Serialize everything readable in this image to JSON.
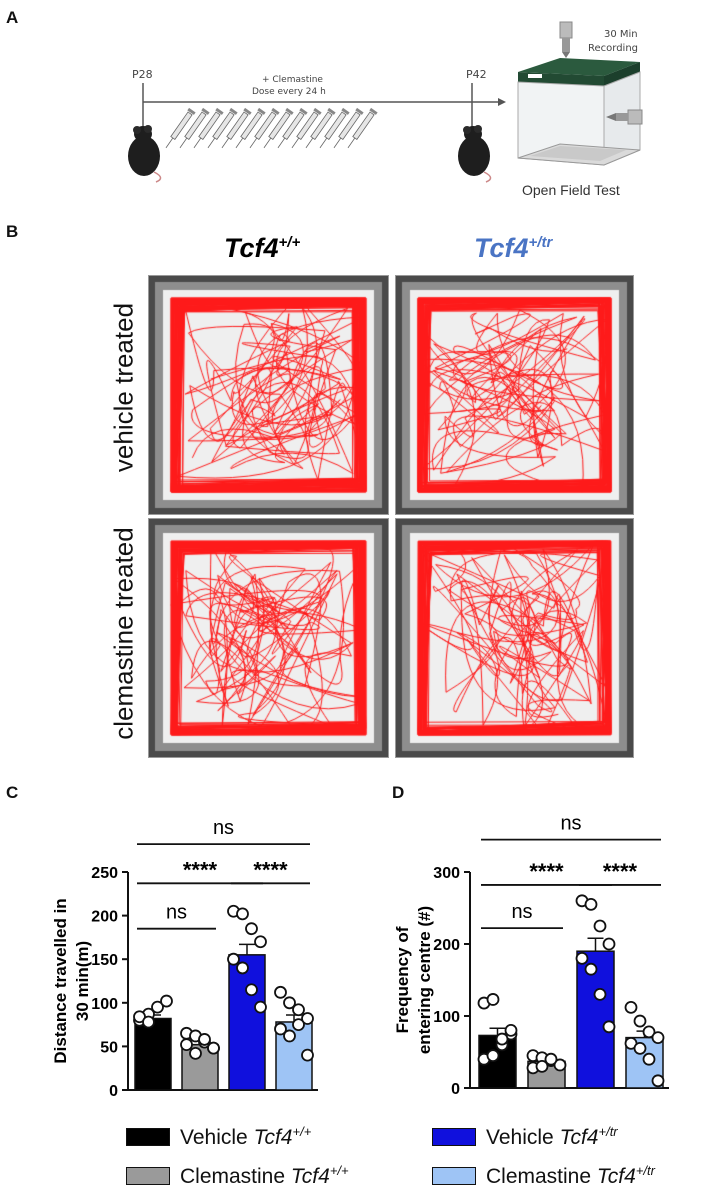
{
  "panels": {
    "a": "A",
    "b": "B",
    "c": "C",
    "d": "D"
  },
  "timeline": {
    "start_label": "P28",
    "end_label": "P42",
    "treatment_line1": "+ Clemastine",
    "treatment_line2": "Dose every 24 h",
    "syringe_count": 14,
    "recording_line1": "30 Min",
    "recording_line2": "Recording",
    "test_label": "Open Field Test"
  },
  "tracking": {
    "columns": [
      {
        "gene": "Tcf4",
        "sup": "+/+",
        "color": "#000000"
      },
      {
        "gene": "Tcf4",
        "sup": "+/tr",
        "color": "#4a74c4"
      }
    ],
    "rows": [
      "vehicle treated",
      "clemastine treated"
    ]
  },
  "legend": [
    {
      "label": "Vehicle",
      "gene": "Tcf4",
      "sup": "+/+",
      "color": "#000000"
    },
    {
      "label": "Vehicle",
      "gene": "Tcf4",
      "sup": "+/tr",
      "color": "#1010dd"
    },
    {
      "label": "Clemastine",
      "gene": "Tcf4",
      "sup": "+/+",
      "color": "#9a9a9a"
    },
    {
      "label": "Clemastine",
      "gene": "Tcf4",
      "sup": "+/tr",
      "color": "#9ec4f5"
    }
  ],
  "chart_data": [
    {
      "type": "bar",
      "panel": "C",
      "ylabel_line1": "Distance travelled in",
      "ylabel_line2": "30 min(m)",
      "ylim": [
        0,
        250
      ],
      "yticks": [
        0,
        50,
        100,
        150,
        200,
        250
      ],
      "categories": [
        "Vehicle Tcf4+/+",
        "Clemastine Tcf4+/+",
        "Vehicle Tcf4+/tr",
        "Clemastine Tcf4+/tr"
      ],
      "colors": [
        "#000000",
        "#9a9a9a",
        "#1010dd",
        "#9ec4f5"
      ],
      "values": [
        82,
        52,
        155,
        78
      ],
      "errors": [
        4,
        5,
        12,
        8
      ],
      "points": [
        [
          80,
          87,
          95,
          102,
          84,
          78
        ],
        [
          65,
          62,
          55,
          48,
          52,
          42,
          58,
          48
        ],
        [
          205,
          202,
          185,
          170,
          150,
          140,
          115,
          95
        ],
        [
          112,
          100,
          92,
          82,
          70,
          62,
          75,
          40
        ]
      ],
      "comparisons": [
        {
          "from": 0,
          "to": 3,
          "label": "ns",
          "y": 282
        },
        {
          "from": 0,
          "to": 2,
          "label": "****",
          "y": 237
        },
        {
          "from": 2,
          "to": 3,
          "label": "****",
          "y": 237
        },
        {
          "from": 0,
          "to": 1,
          "label": "ns",
          "y": 185
        }
      ]
    },
    {
      "type": "bar",
      "panel": "D",
      "ylabel_line1": "Frequency of",
      "ylabel_line2": "entering centre (#)",
      "ylim": [
        0,
        300
      ],
      "yticks": [
        0,
        100,
        200,
        300
      ],
      "categories": [
        "Vehicle Tcf4+/+",
        "Clemastine Tcf4+/+",
        "Vehicle Tcf4+/tr",
        "Clemastine Tcf4+/tr"
      ],
      "colors": [
        "#000000",
        "#9a9a9a",
        "#1010dd",
        "#9ec4f5"
      ],
      "values": [
        73,
        37,
        190,
        70
      ],
      "errors": [
        10,
        5,
        18,
        9
      ],
      "points": [
        [
          118,
          123,
          60,
          75,
          40,
          45,
          68,
          80
        ],
        [
          45,
          42,
          38,
          32,
          28,
          30,
          40
        ],
        [
          260,
          255,
          225,
          200,
          180,
          165,
          130,
          85
        ],
        [
          112,
          93,
          78,
          70,
          62,
          55,
          40,
          10
        ]
      ],
      "comparisons": [
        {
          "from": 0,
          "to": 3,
          "label": "ns",
          "y": 345
        },
        {
          "from": 0,
          "to": 2,
          "label": "****",
          "y": 282
        },
        {
          "from": 2,
          "to": 3,
          "label": "****",
          "y": 282
        },
        {
          "from": 0,
          "to": 1,
          "label": "ns",
          "y": 222
        }
      ]
    }
  ]
}
